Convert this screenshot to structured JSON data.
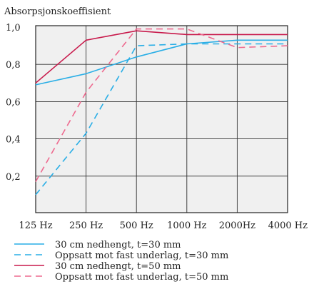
{
  "chart_data": {
    "type": "line",
    "title": "Absorpsjonskoeffisient",
    "xlabel": "",
    "ylabel": "Absorpsjonskoeffisient",
    "categories": [
      "125 Hz",
      "250 Hz",
      "500 Hz",
      "1000 Hz",
      "2000Hz",
      "4000 Hz"
    ],
    "y_ticks": [
      "0,2",
      "0,4",
      "0,6",
      "0,8",
      "1,0"
    ],
    "ylim": [
      0,
      1.0
    ],
    "grid": true,
    "legend_placement": "bottom",
    "series": [
      {
        "name": "30 cm nedhengt, t=30 mm",
        "color": "#29aee6",
        "dash": "solid",
        "values": [
          0.69,
          0.75,
          0.84,
          0.91,
          0.93,
          0.93
        ]
      },
      {
        "name": "Oppsatt mot fast underlag, t=30 mm",
        "color": "#29aee6",
        "dash": "dashed",
        "values": [
          0.1,
          0.43,
          0.9,
          0.91,
          0.91,
          0.91
        ]
      },
      {
        "name": "30 cm nedhengt, t=50 mm",
        "color": "#c8194b",
        "dash": "solid",
        "values": [
          0.7,
          0.93,
          0.98,
          0.96,
          0.96,
          0.96
        ]
      },
      {
        "name": "Oppsatt mot fast underlag, t=50 mm",
        "color": "#ee6a8f",
        "dash": "dashed",
        "values": [
          0.17,
          0.65,
          0.99,
          0.99,
          0.89,
          0.9
        ]
      }
    ]
  }
}
